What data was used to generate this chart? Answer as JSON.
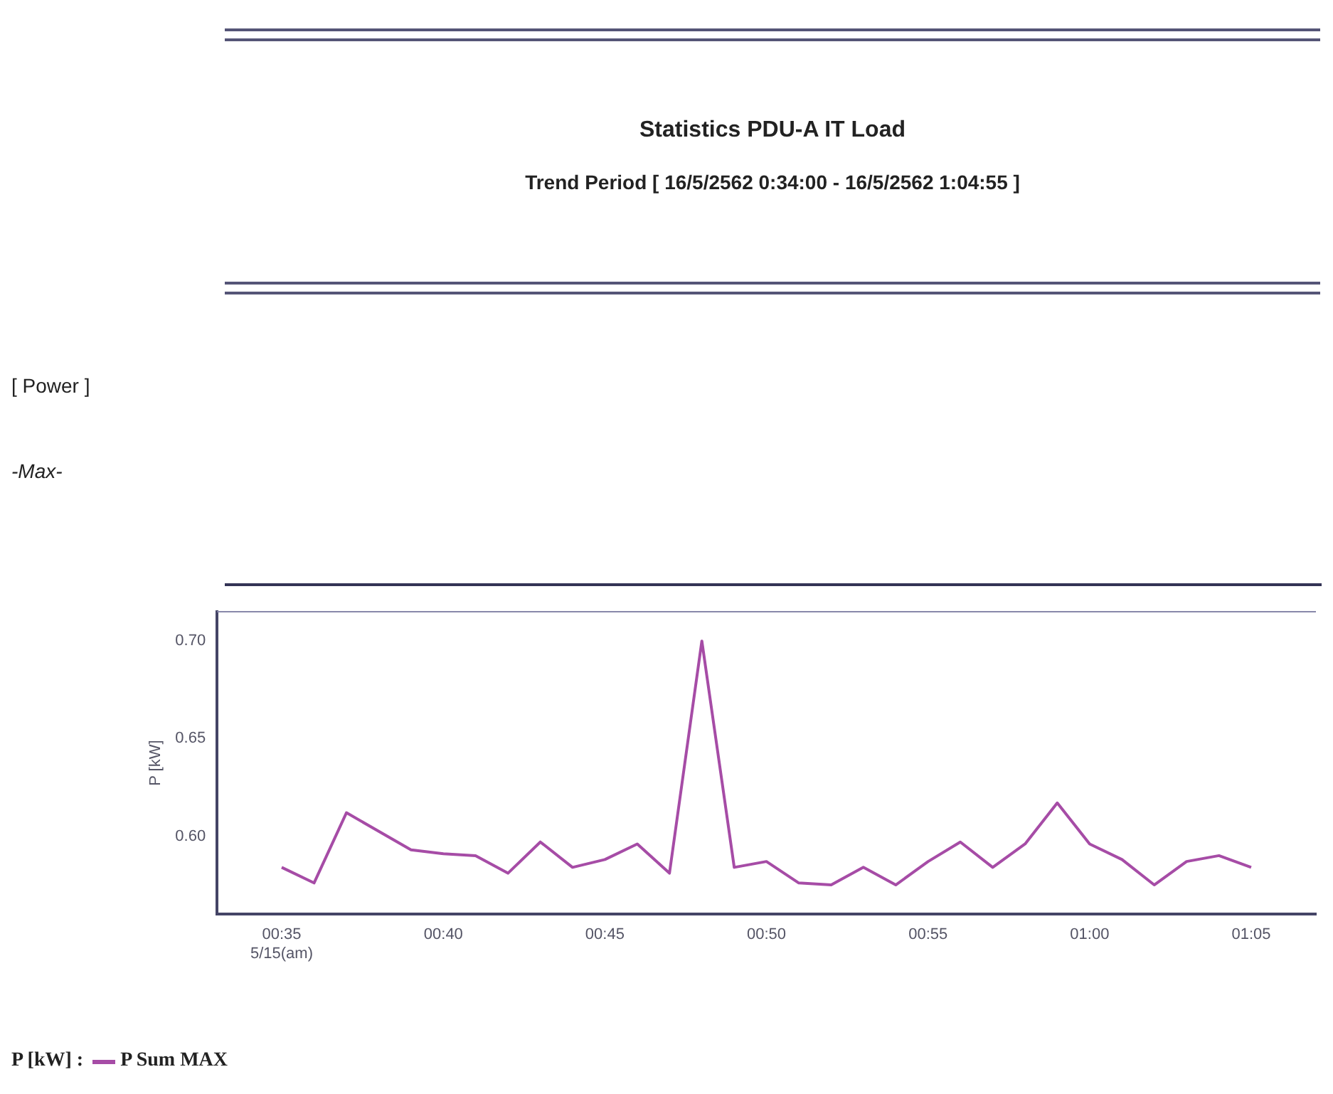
{
  "chart_data": {
    "type": "line",
    "title": "Statistics PDU-A IT Load",
    "subtitle": "Trend Period  [ 16/5/2562 0:34:00 - 16/5/2562 1:04:55 ]",
    "ylabel": "P [kW]",
    "legend_title": "P [kW] :",
    "annotations": [
      "[ Power ]",
      "-Max-"
    ],
    "series": [
      {
        "name": "P Sum MAX",
        "color": "#a64ca6",
        "x": [
          0.5833,
          0.6,
          0.6167,
          0.65,
          0.6667,
          0.6833,
          0.7,
          0.7167,
          0.7333,
          0.75,
          0.7667,
          0.7833,
          0.8,
          0.8167,
          0.8333,
          0.85,
          0.8667,
          0.8833,
          0.9,
          0.9167,
          0.9333,
          0.95,
          0.9667,
          0.9833,
          1.0,
          1.0167,
          1.0333,
          1.05,
          1.0667,
          1.0833
        ],
        "values": [
          0.584,
          0.576,
          0.612,
          0.593,
          0.591,
          0.59,
          0.581,
          0.597,
          0.584,
          0.588,
          0.596,
          0.581,
          0.7,
          0.584,
          0.587,
          0.576,
          0.575,
          0.584,
          0.575,
          0.587,
          0.597,
          0.584,
          0.596,
          0.617,
          0.596,
          0.588,
          0.575,
          0.587,
          0.59,
          0.584
        ]
      }
    ],
    "xlim": [
      0.55,
      1.1167
    ],
    "xticks": [
      {
        "value": 0.5833,
        "label": "00:35\n5/15(am)"
      },
      {
        "value": 0.6667,
        "label": "00:40"
      },
      {
        "value": 0.75,
        "label": "00:45"
      },
      {
        "value": 0.8333,
        "label": "00:50"
      },
      {
        "value": 0.9167,
        "label": "00:55"
      },
      {
        "value": 1.0,
        "label": "01:00"
      },
      {
        "value": 1.0833,
        "label": "01:05"
      }
    ],
    "ylim": [
      0.56,
      0.715
    ],
    "yticks": [
      {
        "value": 0.6,
        "label": "0.60"
      },
      {
        "value": 0.65,
        "label": "0.65"
      },
      {
        "value": 0.7,
        "label": "0.70"
      }
    ],
    "grid": false,
    "legend": "bottom",
    "marker": "none",
    "line_style": "solid"
  }
}
